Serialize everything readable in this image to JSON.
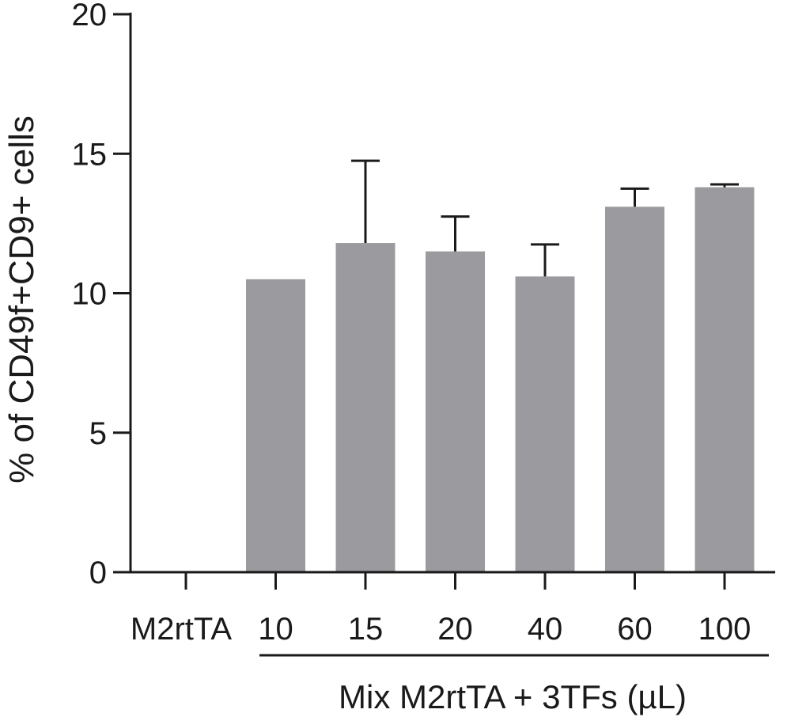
{
  "chart_data": {
    "type": "bar",
    "ylabel": "% of CD49f+CD9+ cells",
    "ylim": [
      0,
      20
    ],
    "yticks": [
      "0",
      "5",
      "10",
      "15",
      "20"
    ],
    "categories": [
      "M2rtTA",
      "10",
      "15",
      "20",
      "40",
      "60",
      "100"
    ],
    "values": [
      0,
      10.5,
      11.8,
      11.5,
      10.6,
      13.1,
      13.8
    ],
    "error_upper": [
      0,
      0,
      14.75,
      12.75,
      11.75,
      13.75,
      13.9
    ],
    "group_label": "Mix M2rtTA + 3TFs (µL)",
    "group_members": [
      "10",
      "15",
      "20",
      "40",
      "60",
      "100"
    ],
    "bar_color": "#9b9b9f",
    "axis_color": "#1a1a1a",
    "grid": false,
    "legend": "none"
  }
}
